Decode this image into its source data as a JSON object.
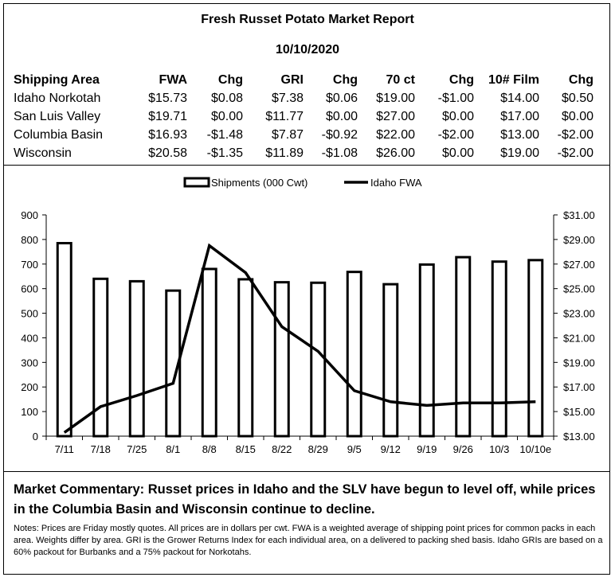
{
  "report": {
    "title": "Fresh Russet Potato Market Report",
    "date": "10/10/2020"
  },
  "table": {
    "headers": [
      "Shipping Area",
      "FWA",
      "Chg",
      "GRI",
      "Chg",
      "70 ct",
      "Chg",
      "10# Film",
      "Chg"
    ],
    "rows": [
      [
        "Idaho Norkotah",
        "$15.73",
        "$0.08",
        "$7.38",
        "$0.06",
        "$19.00",
        "-$1.00",
        "$14.00",
        "$0.50"
      ],
      [
        "San Luis Valley",
        "$19.71",
        "$0.00",
        "$11.77",
        "$0.00",
        "$27.00",
        "$0.00",
        "$17.00",
        "$0.00"
      ],
      [
        "Columbia Basin",
        "$16.93",
        "-$1.48",
        "$7.87",
        "-$0.92",
        "$22.00",
        "-$2.00",
        "$13.00",
        "-$2.00"
      ],
      [
        "Wisconsin",
        "$20.58",
        "-$1.35",
        "$11.89",
        "-$1.08",
        "$26.00",
        "$0.00",
        "$19.00",
        "-$2.00"
      ]
    ]
  },
  "chart_data": {
    "type": "bar",
    "categories": [
      "7/11",
      "7/18",
      "7/25",
      "8/1",
      "8/8",
      "8/15",
      "8/22",
      "8/29",
      "9/5",
      "9/12",
      "9/19",
      "9/26",
      "10/3",
      "10/10e"
    ],
    "series": [
      {
        "name": "Shipments (000 Cwt)",
        "type": "bar",
        "axis": "left",
        "values": [
          785,
          640,
          630,
          592,
          680,
          638,
          626,
          624,
          668,
          618,
          698,
          728,
          710,
          716
        ]
      },
      {
        "name": "Idaho FWA",
        "type": "line",
        "axis": "right",
        "values": [
          13.3,
          15.4,
          16.3,
          17.3,
          28.5,
          26.3,
          21.9,
          19.9,
          16.7,
          15.8,
          15.5,
          15.7,
          15.7,
          15.8
        ]
      }
    ],
    "y_left": {
      "min": 0,
      "max": 900,
      "ticks": [
        "0",
        "100",
        "200",
        "300",
        "400",
        "500",
        "600",
        "700",
        "800",
        "900"
      ]
    },
    "y_right": {
      "min": 13,
      "max": 31,
      "ticks": [
        "$13.00",
        "$15.00",
        "$17.00",
        "$19.00",
        "$21.00",
        "$23.00",
        "$25.00",
        "$27.00",
        "$29.00",
        "$31.00"
      ]
    },
    "grid": false,
    "legend_position": "top-center"
  },
  "commentary": "Market Commentary: Russet prices in Idaho and the SLV have begun to level off, while prices in the Columbia Basin and Wisconsin continue to decline.",
  "notes": "Notes: Prices are Friday mostly quotes. All prices are in dollars per cwt. FWA is a weighted average of shipping point prices for  common packs in each area. Weights differ by area. GRI is the Grower Returns Index for each individual area, on a delivered to packing shed basis. Idaho GRIs are based on a 60% packout for Burbanks and a 75% packout for Norkotahs."
}
